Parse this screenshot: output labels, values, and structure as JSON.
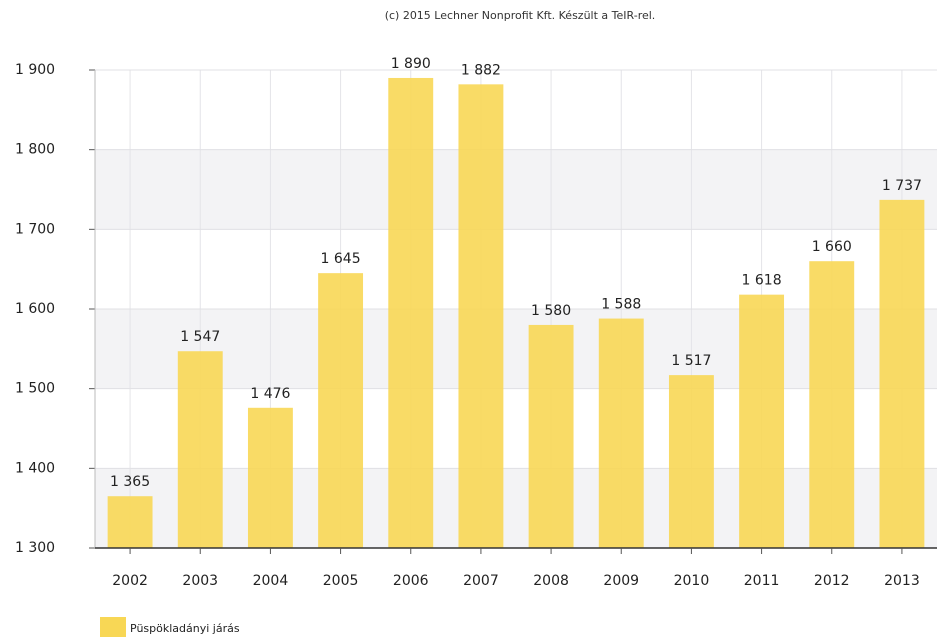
{
  "chart_data": {
    "type": "bar",
    "title": "(c) 2015 Lechner Nonprofit Kft. Készült a TeIR-rel.",
    "categories": [
      "2002",
      "2003",
      "2004",
      "2005",
      "2006",
      "2007",
      "2008",
      "2009",
      "2010",
      "2011",
      "2012",
      "2013"
    ],
    "series": [
      {
        "name": "Püspökladányi járás",
        "color": "#f8d755",
        "values": [
          1365,
          1547,
          1476,
          1645,
          1890,
          1882,
          1580,
          1588,
          1517,
          1618,
          1660,
          1737
        ],
        "value_labels": [
          "1 365",
          "1 547",
          "1 476",
          "1 645",
          "1 890",
          "1 882",
          "1 580",
          "1 588",
          "1 517",
          "1 618",
          "1 660",
          "1 737"
        ]
      }
    ],
    "ylim": [
      1300,
      1900
    ],
    "yticks": [
      {
        "value": 1300,
        "label": "1 300"
      },
      {
        "value": 1400,
        "label": "1 400"
      },
      {
        "value": 1500,
        "label": "1 500"
      },
      {
        "value": 1600,
        "label": "1 600"
      },
      {
        "value": 1700,
        "label": "1 700"
      },
      {
        "value": 1800,
        "label": "1 800"
      },
      {
        "value": 1900,
        "label": "1 900"
      }
    ],
    "grid": true,
    "legend": "bottom-left"
  }
}
